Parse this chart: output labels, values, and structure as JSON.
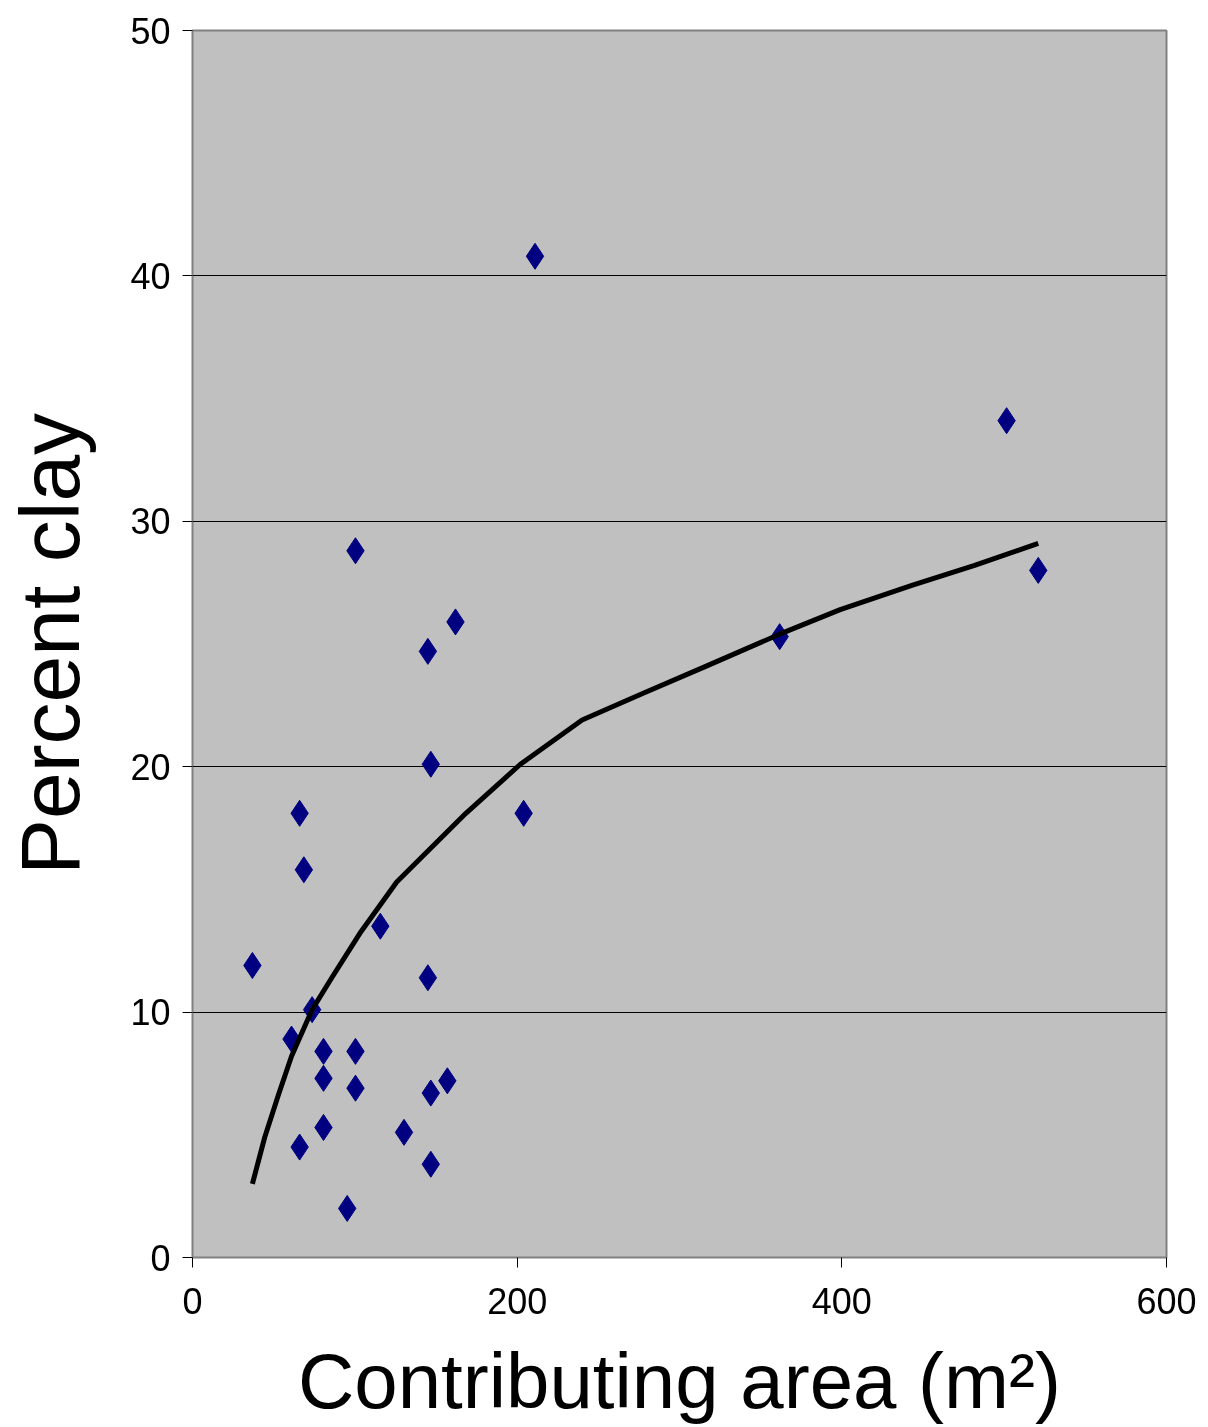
{
  "chart_data": {
    "type": "scatter",
    "xlabel": "Contributing area (m²)",
    "ylabel": "Percent clay",
    "xlim": [
      0,
      600
    ],
    "ylim": [
      0,
      50
    ],
    "xticks": [
      0,
      200,
      400,
      600
    ],
    "yticks": [
      0,
      10,
      20,
      30,
      40,
      50
    ],
    "grid": "y",
    "series": [
      {
        "marker": "diamond",
        "color": "#000080",
        "x": [
          36.9,
          66,
          68.6,
          73.7,
          61,
          80.7,
          80.7,
          80.7,
          66,
          95.3,
          100.4,
          100.4,
          100.4,
          115.7,
          130.3,
          145,
          146.8,
          145,
          146.8,
          157,
          146.8,
          162,
          204,
          211,
          361.7,
          501.5,
          521
        ],
        "values": [
          11.9,
          18.1,
          15.8,
          10.1,
          8.9,
          8.4,
          7.3,
          5.3,
          4.5,
          2.0,
          28.8,
          8.4,
          6.9,
          13.5,
          5.1,
          24.7,
          20.1,
          11.4,
          6.7,
          7.2,
          3.8,
          25.9,
          18.1,
          40.8,
          25.3,
          34.1,
          28.0
        ]
      },
      {
        "type": "line",
        "color": "#000000",
        "line_style": "solid",
        "x": [
          36.9,
          44.5,
          52.8,
          61,
          73.7,
          85.8,
          103,
          125.8,
          168.4,
          202,
          240,
          278,
          316.5,
          361.7,
          399,
          443.6,
          481.8,
          521
        ],
        "values": [
          3.0,
          4.9,
          6.6,
          8.2,
          10.1,
          11.4,
          13.2,
          15.3,
          18.1,
          20.1,
          21.9,
          23.0,
          24.1,
          25.4,
          26.4,
          27.4,
          28.2,
          29.1
        ]
      }
    ]
  }
}
